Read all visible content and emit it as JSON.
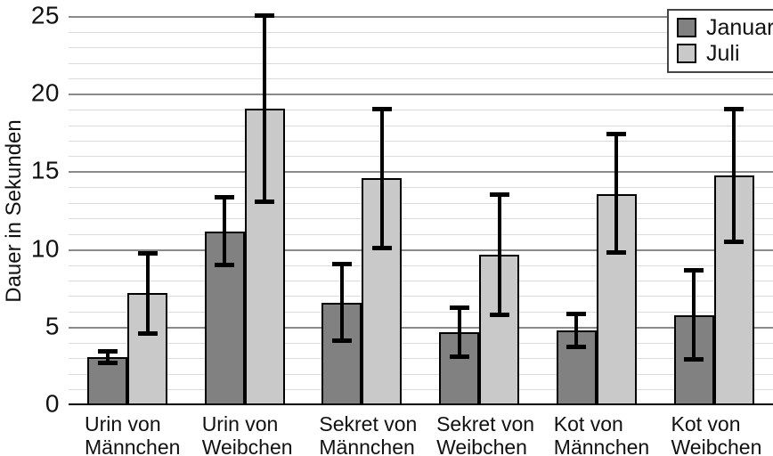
{
  "chart_data": {
    "type": "bar",
    "title": "",
    "xlabel": "",
    "ylabel": "Dauer in Sekunden",
    "ylim": [
      0,
      25
    ],
    "y_ticks": [
      0,
      5,
      10,
      15,
      20,
      25
    ],
    "y_major_step": 5,
    "y_minor_step": 1,
    "grid": "major and minor horizontal gridlines",
    "legend_position": "top-right",
    "categories": [
      "Urin von\nMännchen",
      "Urin von\nWeibchen",
      "Sekret von\nMännchen",
      "Sekret von\nWeibchen",
      "Kot von\nMännchen",
      "Kot von\nWeibchen"
    ],
    "series": [
      {
        "name": "Januar",
        "color": "#818181",
        "values": [
          3.1,
          11.2,
          6.6,
          4.7,
          4.8,
          5.8
        ],
        "error_low": [
          2.7,
          9.0,
          4.1,
          3.1,
          3.7,
          2.9
        ],
        "error_high": [
          3.5,
          13.4,
          9.1,
          6.3,
          5.9,
          8.7
        ]
      },
      {
        "name": "Juli",
        "color": "#c9c9c9",
        "values": [
          7.2,
          19.1,
          14.6,
          9.7,
          13.6,
          14.8
        ],
        "error_low": [
          4.6,
          13.1,
          10.1,
          5.8,
          9.8,
          10.5
        ],
        "error_high": [
          9.8,
          25.1,
          19.1,
          13.6,
          17.5,
          19.1
        ]
      }
    ],
    "error_bar_color": "#000000"
  },
  "colors": {
    "background": "#ffffff",
    "axis_line": "#000000",
    "major_gridline": "#8a8a8a",
    "minor_gridline": "#dcdcdc",
    "text": "#111111",
    "legend_border": "#454545"
  }
}
